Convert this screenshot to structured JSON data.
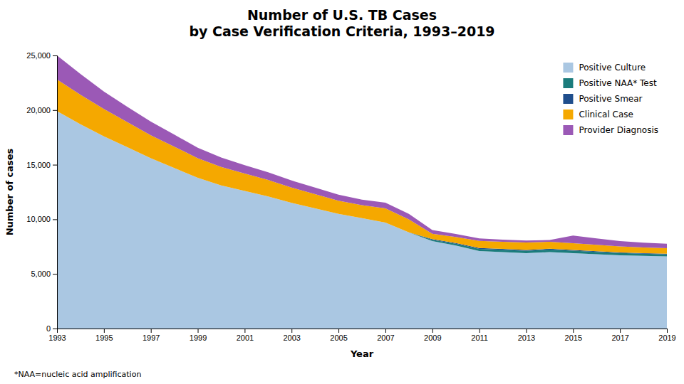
{
  "chart_data": {
    "type": "area",
    "stacked": true,
    "title": "Number of U.S. TB Cases\nby Case Verification Criteria, 1993–2019",
    "x_label": "Year",
    "y_label": "Number of cases",
    "annotations": [
      "*NAA=nucleic acid amplification"
    ],
    "x": [
      1993,
      1994,
      1995,
      1996,
      1997,
      1998,
      1999,
      2000,
      2001,
      2002,
      2003,
      2004,
      2005,
      2006,
      2007,
      2008,
      2009,
      2010,
      2011,
      2012,
      2013,
      2014,
      2015,
      2016,
      2017,
      2018,
      2019
    ],
    "series": [
      {
        "name": "Positive Culture",
        "color": "#aac7e2",
        "values": [
          19900,
          18700,
          17600,
          16600,
          15600,
          14700,
          13800,
          13100,
          12600,
          12100,
          11500,
          11000,
          10500,
          10100,
          9700,
          8800,
          8000,
          7600,
          7100,
          7000,
          6900,
          7000,
          6900,
          6800,
          6700,
          6650,
          6600
        ]
      },
      {
        "name": "Positive NAA* Test",
        "color": "#1b7c7c",
        "values": [
          0,
          0,
          0,
          0,
          0,
          0,
          0,
          0,
          0,
          0,
          0,
          0,
          0,
          0,
          0,
          0,
          120,
          160,
          190,
          210,
          220,
          230,
          230,
          220,
          210,
          200,
          195
        ]
      },
      {
        "name": "Positive Smear",
        "color": "#1f4e8c",
        "values": [
          0,
          0,
          0,
          0,
          0,
          0,
          0,
          0,
          0,
          0,
          0,
          0,
          0,
          0,
          0,
          0,
          60,
          70,
          80,
          80,
          80,
          75,
          70,
          65,
          60,
          58,
          55
        ]
      },
      {
        "name": "Clinical Case",
        "color": "#f5a800",
        "values": [
          2900,
          2700,
          2500,
          2300,
          2100,
          1950,
          1800,
          1700,
          1600,
          1500,
          1400,
          1300,
          1200,
          1200,
          1300,
          1200,
          500,
          550,
          650,
          650,
          680,
          640,
          620,
          580,
          550,
          520,
          510
        ]
      },
      {
        "name": "Provider Diagnosis",
        "color": "#9b59b6",
        "values": [
          2200,
          1900,
          1600,
          1400,
          1250,
          1100,
          950,
          850,
          750,
          700,
          650,
          600,
          550,
          500,
          520,
          500,
          330,
          280,
          240,
          200,
          170,
          160,
          700,
          580,
          490,
          440,
          400
        ]
      }
    ],
    "xlim": [
      1993,
      2019
    ],
    "xticks": [
      1993,
      1995,
      1997,
      1999,
      2001,
      2003,
      2005,
      2007,
      2009,
      2011,
      2013,
      2015,
      2017,
      2019
    ],
    "ylim": [
      0,
      25000
    ],
    "yticks": [
      0,
      {
        "value": 5000,
        "label": "5,000"
      },
      {
        "value": 10000,
        "label": "10,000"
      },
      {
        "value": 15000,
        "label": "15,000"
      },
      {
        "value": 20000,
        "label": "20,000"
      },
      {
        "value": 25000,
        "label": "25,000"
      }
    ],
    "grid": false,
    "legend": "upper right"
  }
}
